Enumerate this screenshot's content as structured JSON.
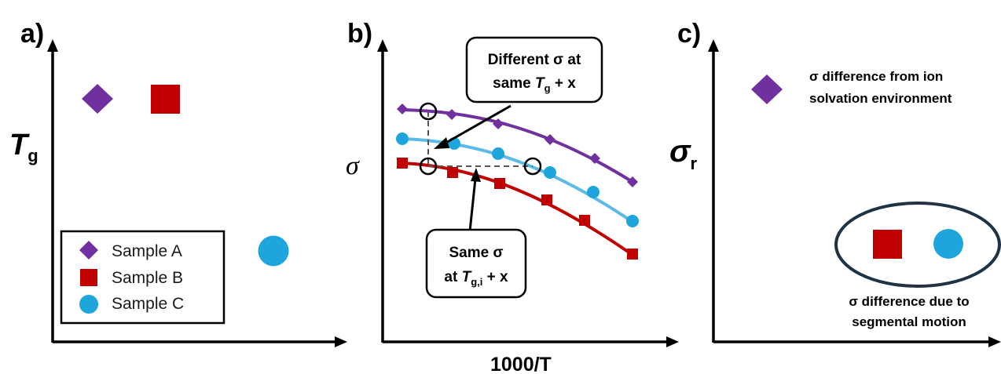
{
  "colors": {
    "sample_a": "#7030a0",
    "sample_b": "#c00000",
    "sample_c": "#1ea5dc",
    "sample_c_line": "#5bbbe6",
    "ellipse_stroke": "#1f3344",
    "axis": "#000000"
  },
  "panel_a": {
    "label": "a)",
    "y_axis": {
      "main": "T",
      "sub": "g"
    },
    "legend": [
      {
        "shape": "diamond-icon",
        "label": "Sample A"
      },
      {
        "shape": "square-icon",
        "label": "Sample B"
      },
      {
        "shape": "circle-icon",
        "label": "Sample C"
      }
    ]
  },
  "panel_b": {
    "label": "b)",
    "y_axis": "σ",
    "x_axis": "1000/T",
    "callout_top": {
      "line1": "Different σ at",
      "line2_prefix": "same ",
      "line2_T": "T",
      "line2_sub": "g",
      "line2_suffix": " + x"
    },
    "callout_bottom": {
      "line1": "Same σ",
      "line2_prefix": "at ",
      "line2_T": "T",
      "line2_sub": "g,i",
      "line2_suffix": " + x"
    }
  },
  "panel_c": {
    "label": "c)",
    "y_axis": {
      "main": "σ",
      "sub": "r"
    },
    "note_top": {
      "line1": "σ difference from ion",
      "line2": "solvation environment"
    },
    "note_bottom": {
      "line1": "σ difference due to",
      "line2": "segmental motion"
    }
  }
}
